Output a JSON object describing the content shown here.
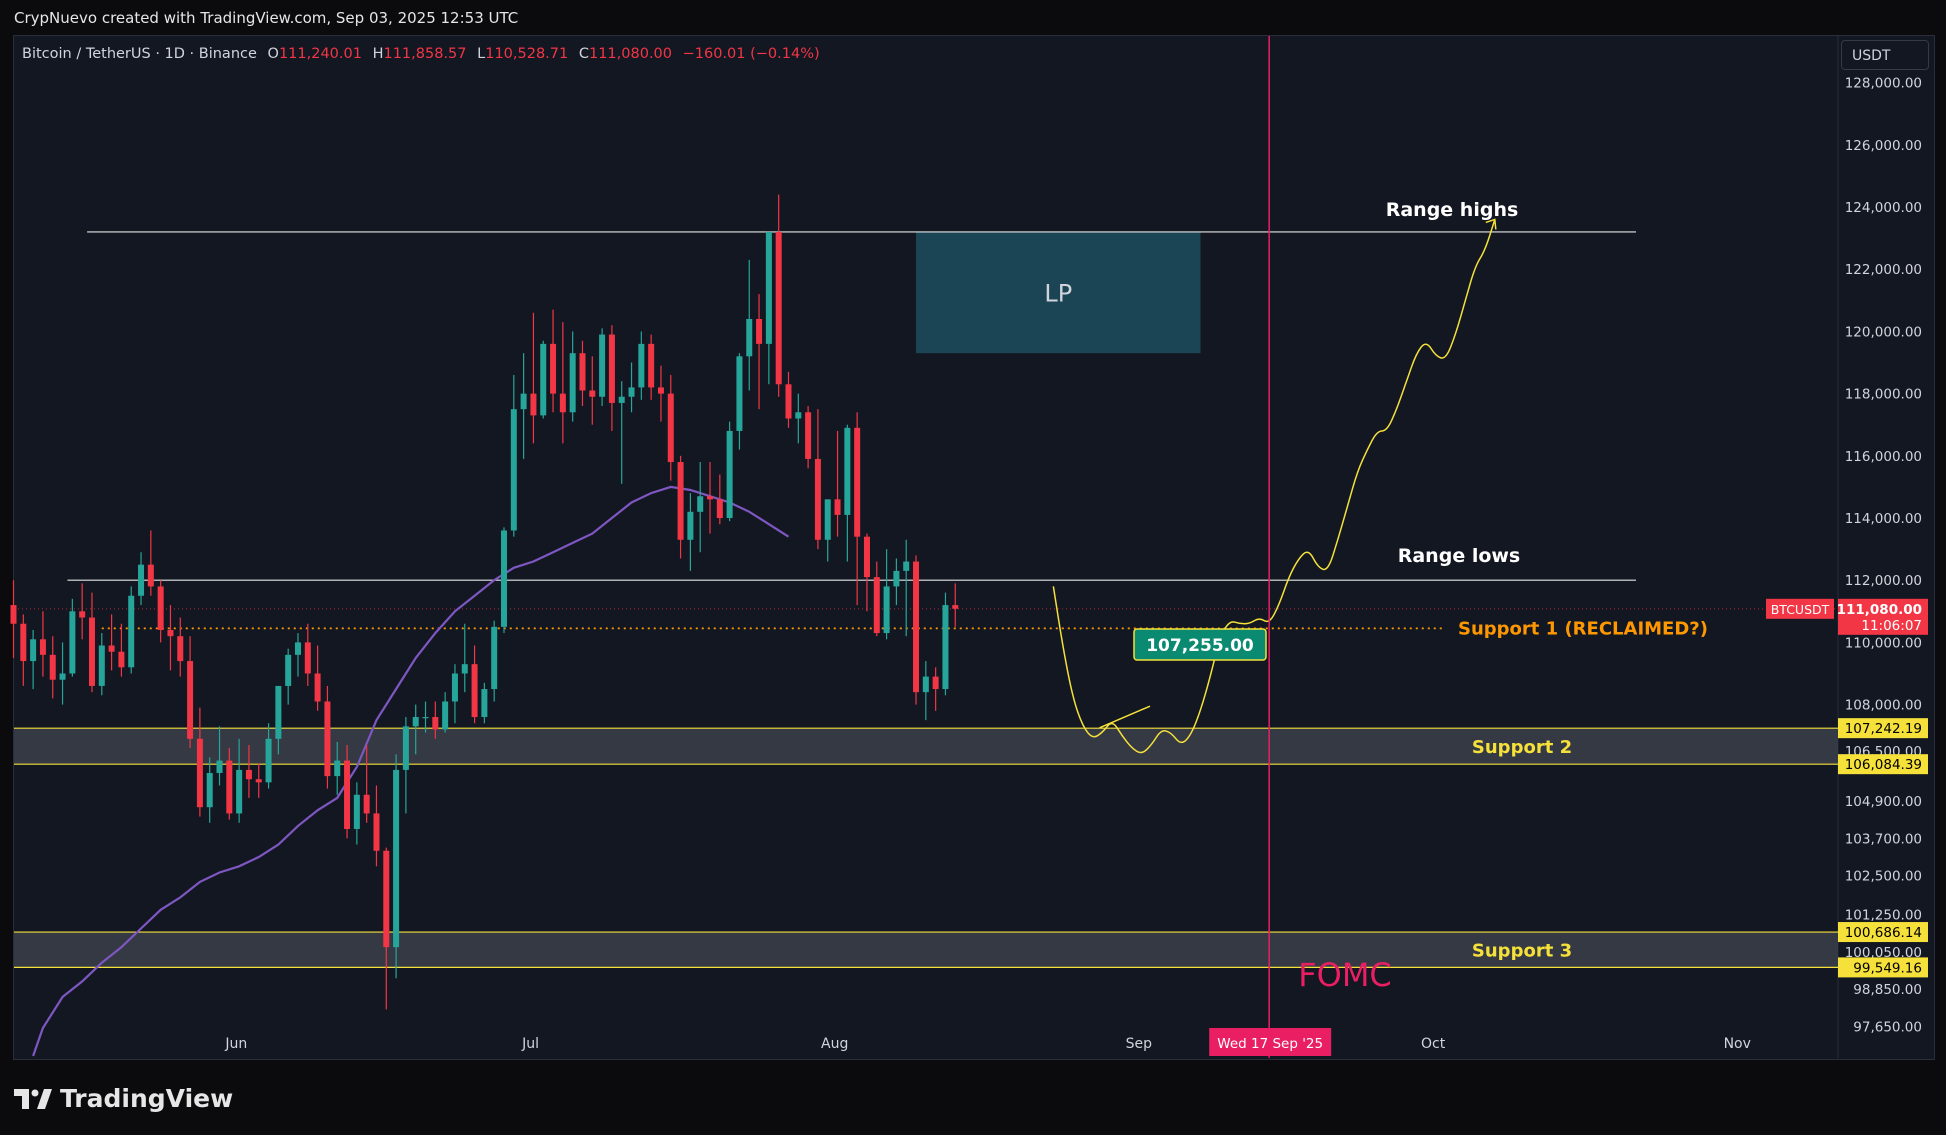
{
  "header": {
    "credit": "CrypNuevo created with TradingView.com, Sep 03, 2025 12:53 UTC"
  },
  "legend": {
    "symbol": "Bitcoin / TetherUS · 1D · Binance",
    "o_label": "O",
    "o_value": "111,240.01",
    "h_label": "H",
    "h_value": "111,858.57",
    "l_label": "L",
    "l_value": "110,528.71",
    "c_label": "C",
    "c_value": "111,080.00",
    "change": "−160.01 (−0.14%)"
  },
  "currency_button": "USDT",
  "footer": {
    "brand": "TradingView"
  },
  "colors": {
    "background": "#131722",
    "up": "#26a69a",
    "down": "#f23645",
    "ma": "#7e57c2",
    "support": "#f5e13a",
    "support_orange": "#ff9800",
    "fomc": "#e91e63",
    "lp_box": "#1b4759"
  },
  "chart_data": {
    "type": "candlestick",
    "symbol_tag": "BTCUSDT",
    "timeframe": "1D",
    "ylim": [
      96700,
      129500
    ],
    "y_ticks": [
      {
        "value": 128000,
        "label": "128,000.00"
      },
      {
        "value": 126000,
        "label": "126,000.00"
      },
      {
        "value": 124000,
        "label": "124,000.00"
      },
      {
        "value": 122000,
        "label": "122,000.00"
      },
      {
        "value": 120000,
        "label": "120,000.00"
      },
      {
        "value": 118000,
        "label": "118,000.00"
      },
      {
        "value": 116000,
        "label": "116,000.00"
      },
      {
        "value": 114000,
        "label": "114,000.00"
      },
      {
        "value": 112000,
        "label": "112,000.00"
      },
      {
        "value": 110000,
        "label": "110,000.00"
      },
      {
        "value": 108000,
        "label": "108,000.00"
      },
      {
        "value": 106500,
        "label": "106,500.00"
      },
      {
        "value": 104900,
        "label": "104,900.00"
      },
      {
        "value": 103700,
        "label": "103,700.00"
      },
      {
        "value": 102500,
        "label": "102,500.00"
      },
      {
        "value": 101250,
        "label": "101,250.00"
      },
      {
        "value": 100050,
        "label": "100,050.00"
      },
      {
        "value": 98850,
        "label": "98,850.00"
      },
      {
        "value": 97650,
        "label": "97,650.00"
      }
    ],
    "x_ticks": [
      {
        "day": 22,
        "label": "Jun"
      },
      {
        "day": 52,
        "label": "Jul"
      },
      {
        "day": 83,
        "label": "Aug"
      },
      {
        "day": 114,
        "label": "Sep"
      },
      {
        "day": 144,
        "label": "Oct"
      },
      {
        "day": 175,
        "label": "Nov"
      }
    ],
    "candles": [
      [
        111200,
        112000,
        109500,
        110600
      ],
      [
        110600,
        110900,
        108600,
        109400
      ],
      [
        109400,
        110400,
        108500,
        110100
      ],
      [
        110100,
        111000,
        108900,
        109600
      ],
      [
        109600,
        110200,
        108200,
        108800
      ],
      [
        108800,
        110000,
        108000,
        109000
      ],
      [
        109000,
        111400,
        108900,
        111000
      ],
      [
        111000,
        111900,
        110100,
        110800
      ],
      [
        110800,
        111600,
        108400,
        108600
      ],
      [
        108600,
        110300,
        108300,
        109900
      ],
      [
        109900,
        110900,
        109100,
        109700
      ],
      [
        109700,
        110600,
        108900,
        109200
      ],
      [
        109200,
        111800,
        109000,
        111500
      ],
      [
        111500,
        112900,
        111200,
        112500
      ],
      [
        112500,
        113600,
        111500,
        111800
      ],
      [
        111800,
        112000,
        110000,
        110400
      ],
      [
        110400,
        111200,
        109100,
        110200
      ],
      [
        110200,
        110800,
        108900,
        109400
      ],
      [
        109400,
        110200,
        106600,
        106900
      ],
      [
        106900,
        107900,
        104400,
        104700
      ],
      [
        104700,
        106300,
        104200,
        105800
      ],
      [
        105800,
        107300,
        105400,
        106200
      ],
      [
        106200,
        106600,
        104300,
        104500
      ],
      [
        104500,
        106900,
        104200,
        105900
      ],
      [
        105900,
        106700,
        105000,
        105600
      ],
      [
        105600,
        106100,
        105000,
        105500
      ],
      [
        105500,
        107400,
        105300,
        106900
      ],
      [
        106900,
        108600,
        106400,
        108600
      ],
      [
        108600,
        109800,
        108000,
        109600
      ],
      [
        109600,
        110300,
        108900,
        110000
      ],
      [
        110000,
        110600,
        108600,
        109000
      ],
      [
        109000,
        109900,
        107800,
        108100
      ],
      [
        108100,
        108600,
        105300,
        105700
      ],
      [
        105700,
        106800,
        105100,
        106200
      ],
      [
        106200,
        106700,
        103700,
        104000
      ],
      [
        104000,
        105500,
        103500,
        105100
      ],
      [
        105100,
        106700,
        104200,
        104500
      ],
      [
        104500,
        105400,
        102800,
        103300
      ],
      [
        103300,
        103400,
        98200,
        100200
      ],
      [
        100200,
        106400,
        99200,
        105900
      ],
      [
        105900,
        107600,
        104500,
        107300
      ],
      [
        107300,
        108000,
        106400,
        107600
      ],
      [
        107600,
        108100,
        107100,
        107600
      ],
      [
        107600,
        108100,
        106900,
        107200
      ],
      [
        107200,
        108400,
        107100,
        108100
      ],
      [
        108100,
        109300,
        107400,
        109000
      ],
      [
        109000,
        110600,
        108400,
        109300
      ],
      [
        109300,
        109900,
        107400,
        107600
      ],
      [
        107600,
        108700,
        107400,
        108500
      ],
      [
        108500,
        110700,
        108100,
        110500
      ],
      [
        110500,
        113700,
        110300,
        113600
      ],
      [
        113600,
        118600,
        113400,
        117500
      ],
      [
        117500,
        119300,
        115900,
        118000
      ],
      [
        118000,
        120600,
        116400,
        117300
      ],
      [
        117300,
        119700,
        117200,
        119600
      ],
      [
        119600,
        120700,
        117400,
        118000
      ],
      [
        118000,
        120300,
        116400,
        117400
      ],
      [
        117400,
        120000,
        117100,
        119300
      ],
      [
        119300,
        119700,
        117600,
        118100
      ],
      [
        118100,
        119200,
        117000,
        117900
      ],
      [
        117900,
        120100,
        117600,
        119900
      ],
      [
        119900,
        120200,
        116800,
        117700
      ],
      [
        117700,
        118400,
        115100,
        117900
      ],
      [
        117900,
        119000,
        117400,
        118200
      ],
      [
        118200,
        120000,
        117800,
        119600
      ],
      [
        119600,
        119900,
        117800,
        118200
      ],
      [
        118200,
        118900,
        117100,
        118000
      ],
      [
        118000,
        118600,
        115200,
        115800
      ],
      [
        115800,
        116000,
        112700,
        113300
      ],
      [
        113300,
        114800,
        112300,
        114200
      ],
      [
        114200,
        115800,
        112900,
        114700
      ],
      [
        114700,
        115800,
        113500,
        114600
      ],
      [
        114600,
        115400,
        113800,
        114000
      ],
      [
        114000,
        117100,
        113900,
        116800
      ],
      [
        116800,
        119300,
        116200,
        119200
      ],
      [
        119200,
        122300,
        118100,
        120400
      ],
      [
        120400,
        121200,
        117500,
        119600
      ],
      [
        119600,
        123100,
        118300,
        123200
      ],
      [
        123200,
        124400,
        117900,
        118300
      ],
      [
        118300,
        118700,
        116900,
        117200
      ],
      [
        117200,
        118000,
        116400,
        117400
      ],
      [
        117400,
        117600,
        115600,
        115900
      ],
      [
        115900,
        117500,
        113000,
        113300
      ],
      [
        113300,
        114600,
        112600,
        114600
      ],
      [
        114600,
        116800,
        113400,
        114100
      ],
      [
        114100,
        117000,
        112600,
        116900
      ],
      [
        116900,
        117400,
        111200,
        113400
      ],
      [
        113400,
        113500,
        111000,
        112100
      ],
      [
        112100,
        112600,
        110200,
        110300
      ],
      [
        110300,
        113000,
        110100,
        111800
      ],
      [
        111800,
        112700,
        111200,
        112300
      ],
      [
        112300,
        113300,
        110200,
        112600
      ],
      [
        112600,
        112800,
        108000,
        108400
      ],
      [
        108400,
        109400,
        107500,
        108900
      ],
      [
        108900,
        109200,
        107800,
        108500
      ],
      [
        108500,
        111600,
        108300,
        111200
      ],
      [
        111200,
        111900,
        110500,
        111080
      ]
    ],
    "ma": [
      [
        30,
        96700
      ],
      [
        31,
        97600
      ],
      [
        33,
        98600
      ],
      [
        35,
        99100
      ],
      [
        37,
        99700
      ],
      [
        39,
        100200
      ],
      [
        41,
        100800
      ],
      [
        43,
        101400
      ],
      [
        45,
        101800
      ],
      [
        47,
        102300
      ],
      [
        49,
        102600
      ],
      [
        51,
        102800
      ],
      [
        53,
        103100
      ],
      [
        55,
        103500
      ],
      [
        57,
        104100
      ],
      [
        59,
        104600
      ],
      [
        61,
        105000
      ],
      [
        63,
        106000
      ],
      [
        65,
        107500
      ],
      [
        67,
        108500
      ],
      [
        69,
        109500
      ],
      [
        71,
        110300
      ],
      [
        73,
        111000
      ],
      [
        75,
        111500
      ],
      [
        77,
        112000
      ],
      [
        79,
        112400
      ],
      [
        81,
        112600
      ],
      [
        83,
        112900
      ],
      [
        85,
        113200
      ],
      [
        87,
        113500
      ],
      [
        89,
        114000
      ],
      [
        91,
        114500
      ],
      [
        93,
        114800
      ],
      [
        95,
        115000
      ],
      [
        97,
        114900
      ],
      [
        99,
        114700
      ],
      [
        101,
        114500
      ],
      [
        103,
        114200
      ],
      [
        105,
        113800
      ],
      [
        107,
        113400
      ]
    ],
    "ma_x_start_day": -28,
    "ranges": {
      "range_high": {
        "value": 123200,
        "label": "Range highs"
      },
      "range_low": {
        "value": 112000,
        "label": "Range lows"
      },
      "support_1": {
        "value": 110450,
        "label": "Support 1 (RECLAIMED?)"
      },
      "support_2": {
        "top": 107242.19,
        "bottom": 106084.39,
        "label": "Support 2",
        "top_label": "107,242.19",
        "bottom_label": "106,084.39"
      },
      "support_3": {
        "top": 100686.14,
        "bottom": 99549.16,
        "label": "Support 3",
        "top_label": "100,686.14",
        "bottom_label": "99,549.16"
      }
    },
    "lp_zone": {
      "label": "LP",
      "top": 123200,
      "bottom": 119300,
      "x_start_day": 92,
      "x_end_day": 121
    },
    "callout": {
      "value_label": "107,255.00",
      "value": 107255
    },
    "current_price": {
      "value": 111080,
      "price_label": "111,080.00",
      "countdown": "11:06:07"
    },
    "event": {
      "label": "FOMC",
      "date_label": "Wed 17 Sep '25",
      "day": 128
    },
    "projection_path": [
      [
        106,
        111800
      ],
      [
        107,
        109800
      ],
      [
        108,
        108200
      ],
      [
        109,
        107300
      ],
      [
        110,
        106900
      ],
      [
        111,
        107100
      ],
      [
        112,
        107500
      ],
      [
        113,
        107000
      ],
      [
        114,
        106600
      ],
      [
        115,
        106400
      ],
      [
        116,
        106700
      ],
      [
        117,
        107200
      ],
      [
        118,
        107100
      ],
      [
        119,
        106700
      ],
      [
        120,
        107000
      ],
      [
        121,
        107800
      ],
      [
        122,
        108900
      ],
      [
        123,
        110200
      ],
      [
        124,
        110700
      ],
      [
        125,
        110600
      ],
      [
        126,
        110600
      ],
      [
        127,
        110800
      ],
      [
        128,
        110600
      ],
      [
        129,
        111200
      ],
      [
        130,
        112100
      ],
      [
        131,
        112700
      ],
      [
        132,
        113000
      ],
      [
        133,
        112400
      ],
      [
        134,
        112300
      ],
      [
        135,
        113300
      ],
      [
        136,
        114400
      ],
      [
        137,
        115500
      ],
      [
        138,
        116200
      ],
      [
        139,
        116800
      ],
      [
        140,
        116800
      ],
      [
        141,
        117500
      ],
      [
        142,
        118400
      ],
      [
        143,
        119300
      ],
      [
        144,
        119700
      ],
      [
        145,
        119200
      ],
      [
        146,
        119100
      ],
      [
        147,
        119900
      ],
      [
        148,
        121000
      ],
      [
        149,
        122100
      ],
      [
        150,
        122600
      ],
      [
        151,
        123600
      ]
    ]
  }
}
